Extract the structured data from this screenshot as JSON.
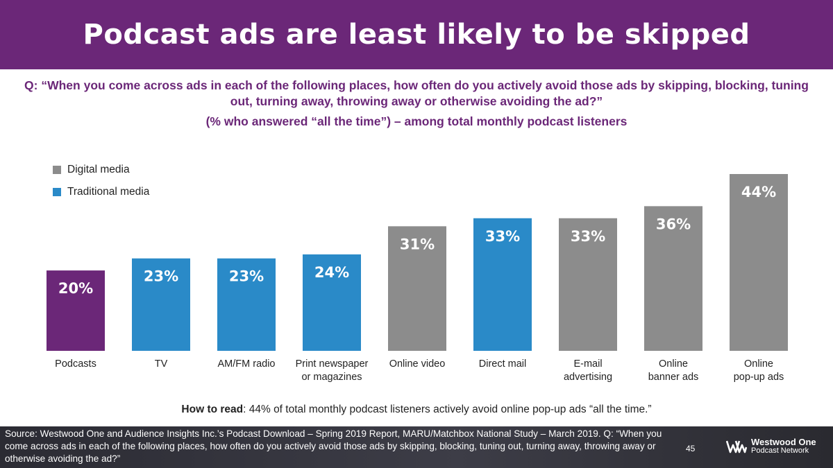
{
  "title": "Podcast ads are least likely to be skipped",
  "question": "Q: “When you come across ads in each of the following places, how often do you actively avoid those ads by skipping, blocking, tuning out, turning away, throwing away or otherwise avoiding the ad?”",
  "subquestion": "(% who answered “all the time”) – among total monthly podcast listeners",
  "legend": [
    {
      "label": "Digital media",
      "color": "#8c8c8c"
    },
    {
      "label": "Traditional media",
      "color": "#2a8ac8"
    }
  ],
  "chart_data": {
    "type": "bar",
    "categories": [
      [
        "Podcasts"
      ],
      [
        "TV"
      ],
      [
        "AM/FM radio"
      ],
      [
        "Print newspaper",
        "or magazines"
      ],
      [
        "Online video"
      ],
      [
        "Direct mail"
      ],
      [
        "E-mail",
        "advertising"
      ],
      [
        "Online",
        "banner ads"
      ],
      [
        "Online",
        "pop-up ads"
      ]
    ],
    "values": [
      20,
      23,
      23,
      24,
      31,
      33,
      33,
      36,
      44
    ],
    "value_labels": [
      "20%",
      "23%",
      "23%",
      "24%",
      "31%",
      "33%",
      "33%",
      "36%",
      "44%"
    ],
    "groups": [
      "Podcasts",
      "Traditional media",
      "Traditional media",
      "Traditional media",
      "Digital media",
      "Traditional media",
      "Digital media",
      "Digital media",
      "Digital media"
    ],
    "colors": [
      "#6b2778",
      "#2a8ac8",
      "#2a8ac8",
      "#2a8ac8",
      "#8c8c8c",
      "#2a8ac8",
      "#8c8c8c",
      "#8c8c8c",
      "#8c8c8c"
    ],
    "ylim": [
      0,
      44
    ],
    "grid": false,
    "legend_position": "top-left"
  },
  "how_to_read": {
    "label": "How to read",
    "text": ": 44% of total monthly podcast listeners actively avoid online pop-up ads “all the time.”"
  },
  "footer": {
    "source": "Source: Westwood One and Audience Insights Inc.’s Podcast Download – Spring 2019 Report, MARU/Matchbox National Study – March 2019. Q: “When you come across ads in each of the following places, how often do you actively avoid those ads by skipping, blocking, tuning out, turning away, throwing away or otherwise avoiding the ad?”",
    "page_number": "45",
    "logo_name": "Westwood One",
    "logo_sub": "Podcast Network"
  }
}
